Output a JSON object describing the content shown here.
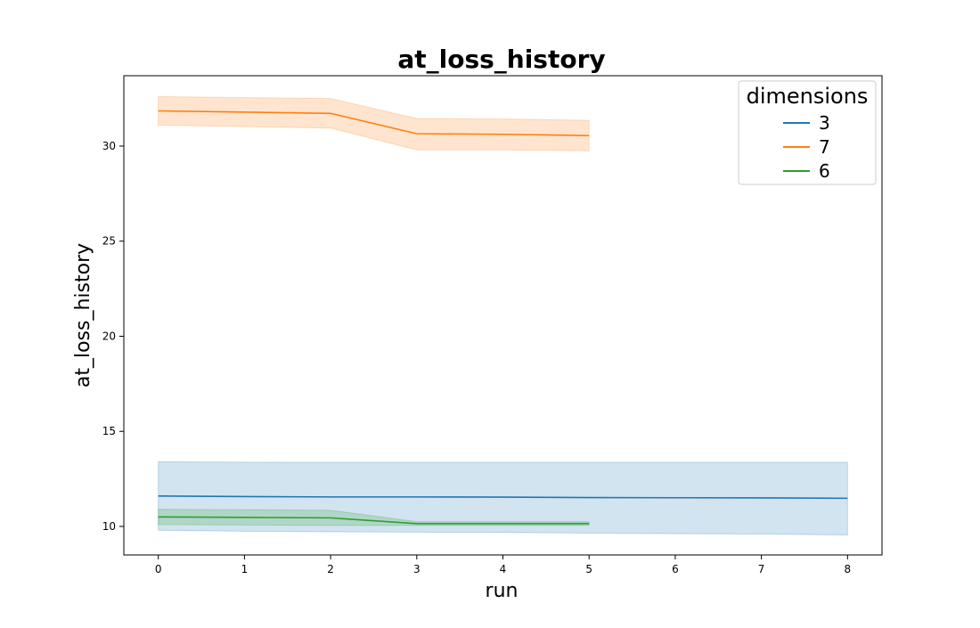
{
  "chart_data": {
    "type": "line",
    "title": "at_loss_history",
    "xlabel": "run",
    "ylabel": "at_loss_history",
    "xlim": [
      -0.4,
      8.4
    ],
    "ylim": [
      8.5,
      33.7
    ],
    "x_ticks": [
      0,
      1,
      2,
      3,
      4,
      5,
      6,
      7,
      8
    ],
    "y_ticks": [
      10,
      15,
      20,
      25,
      30
    ],
    "grid": false,
    "legend": {
      "title": "dimensions",
      "placement": "top-right"
    },
    "series": [
      {
        "name": "3",
        "color": "#1f77b4",
        "x": [
          0,
          1,
          2,
          3,
          4,
          5,
          6,
          7,
          8
        ],
        "y": [
          11.6,
          11.57,
          11.55,
          11.55,
          11.54,
          11.52,
          11.51,
          11.5,
          11.48
        ],
        "ci_low": [
          9.8,
          9.75,
          9.72,
          9.7,
          9.68,
          9.65,
          9.62,
          9.6,
          9.55
        ],
        "ci_high": [
          13.4,
          13.38,
          13.37,
          13.37,
          13.37,
          13.37,
          13.37,
          13.37,
          13.37
        ]
      },
      {
        "name": "7",
        "color": "#ff7f0e",
        "x": [
          0,
          2,
          3,
          4,
          5
        ],
        "y": [
          31.85,
          31.72,
          30.65,
          30.62,
          30.55
        ],
        "ci_low": [
          31.1,
          30.95,
          29.8,
          29.8,
          29.75
        ],
        "ci_high": [
          32.6,
          32.5,
          31.45,
          31.42,
          31.35
        ]
      },
      {
        "name": "6",
        "color": "#2ca02c",
        "x": [
          0,
          2,
          3,
          4,
          5
        ],
        "y": [
          10.5,
          10.45,
          10.15,
          10.15,
          10.15
        ],
        "ci_low": [
          10.1,
          10.05,
          10.05,
          10.05,
          10.05
        ],
        "ci_high": [
          10.9,
          10.85,
          10.25,
          10.25,
          10.25
        ]
      }
    ]
  }
}
